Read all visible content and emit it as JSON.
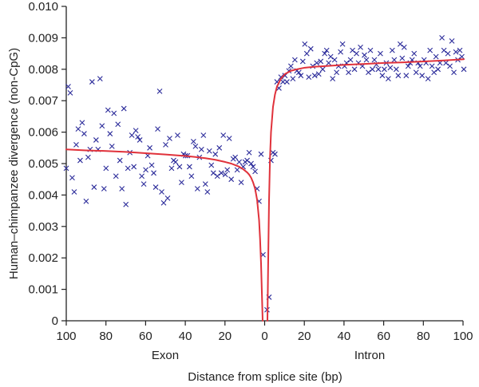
{
  "chart_data": {
    "type": "scatter",
    "title": "",
    "xlabel": "Distance from splice site (bp)",
    "ylabel": "Human–chimpanzee divergence (non-CpG)",
    "region_labels": {
      "exon": "Exon",
      "intron": "Intron"
    },
    "x_tick_labels": [
      "100",
      "80",
      "60",
      "40",
      "20",
      "0",
      "20",
      "40",
      "60",
      "80",
      "100"
    ],
    "y_tick_labels": [
      "0",
      "0.001",
      "0.002",
      "0.003",
      "0.004",
      "0.005",
      "0.006",
      "0.007",
      "0.008",
      "0.009",
      "0.010"
    ],
    "ylim": [
      0,
      0.01
    ],
    "grid": false,
    "colors": {
      "points": "#2b2b9a",
      "fit": "#e0323b",
      "axis": "#222222"
    },
    "series": [
      {
        "region": "exon",
        "marker": "x",
        "x": [
          100,
          99,
          98,
          97,
          96,
          95,
          94,
          93,
          92,
          91,
          90,
          89,
          88,
          87,
          86,
          85,
          84,
          83,
          82,
          81,
          80,
          79,
          78,
          77,
          76,
          75,
          74,
          73,
          72,
          71,
          70,
          69,
          68,
          67,
          66,
          65,
          64,
          63,
          62,
          61,
          60,
          59,
          58,
          57,
          56,
          55,
          54,
          53,
          52,
          51,
          50,
          49,
          48,
          47,
          46,
          45,
          44,
          43,
          42,
          41,
          40,
          39,
          38,
          37,
          36,
          35,
          34,
          33,
          32,
          31,
          30,
          29,
          28,
          27,
          26,
          25,
          24,
          23,
          22,
          21,
          20,
          19,
          18,
          17,
          16,
          15,
          14,
          13,
          12,
          11,
          10,
          9,
          8,
          7,
          6,
          5,
          4,
          3,
          2,
          1
        ],
        "y": [
          0.00485,
          0.00745,
          0.00725,
          0.00455,
          0.0041,
          0.0056,
          0.0061,
          0.0051,
          0.0063,
          0.00595,
          0.0038,
          0.0052,
          0.00545,
          0.0076,
          0.00425,
          0.00575,
          0.00545,
          0.0077,
          0.0062,
          0.0042,
          0.00485,
          0.0067,
          0.00595,
          0.00555,
          0.0066,
          0.0046,
          0.00625,
          0.0051,
          0.0042,
          0.00675,
          0.0037,
          0.00485,
          0.00535,
          0.0059,
          0.0049,
          0.00605,
          0.00585,
          0.00575,
          0.0046,
          0.00435,
          0.0048,
          0.00525,
          0.0055,
          0.00495,
          0.0047,
          0.00425,
          0.0061,
          0.0073,
          0.0041,
          0.00375,
          0.0056,
          0.0039,
          0.0058,
          0.00485,
          0.0051,
          0.00505,
          0.0059,
          0.0049,
          0.0044,
          0.0053,
          0.00525,
          0.00525,
          0.0049,
          0.0046,
          0.0057,
          0.00555,
          0.0042,
          0.0052,
          0.00545,
          0.0059,
          0.00435,
          0.0041,
          0.0054,
          0.00495,
          0.0047,
          0.0053,
          0.0046,
          0.0055,
          0.0047,
          0.0059,
          0.00465,
          0.0048,
          0.0058,
          0.0045,
          0.00515,
          0.0052,
          0.0048,
          0.00505,
          0.0044,
          0.0049,
          0.00505,
          0.0051,
          0.00535,
          0.005,
          0.0049,
          0.00475,
          0.0042,
          0.0038,
          0.0053,
          0.0021
        ]
      },
      {
        "region": "intron",
        "marker": "x",
        "x": [
          1,
          2,
          3,
          4,
          5,
          6,
          7,
          8,
          9,
          10,
          11,
          12,
          13,
          14,
          15,
          16,
          17,
          18,
          19,
          20,
          21,
          22,
          23,
          24,
          25,
          26,
          27,
          28,
          29,
          30,
          31,
          32,
          33,
          34,
          35,
          36,
          37,
          38,
          39,
          40,
          41,
          42,
          43,
          44,
          45,
          46,
          47,
          48,
          49,
          50,
          51,
          52,
          53,
          54,
          55,
          56,
          57,
          58,
          59,
          60,
          61,
          62,
          63,
          64,
          65,
          66,
          67,
          68,
          69,
          70,
          71,
          72,
          73,
          74,
          75,
          76,
          77,
          78,
          79,
          80,
          81,
          82,
          83,
          84,
          85,
          86,
          87,
          88,
          89,
          90,
          91,
          92,
          93,
          94,
          95,
          96,
          97,
          98,
          99,
          100
        ],
        "y": [
          0.00035,
          0.00075,
          0.0051,
          0.00535,
          0.0053,
          0.0076,
          0.0074,
          0.00775,
          0.0076,
          0.0078,
          0.0076,
          0.00795,
          0.0081,
          0.0077,
          0.0083,
          0.00795,
          0.0079,
          0.0078,
          0.00825,
          0.0088,
          0.0085,
          0.00775,
          0.00865,
          0.0081,
          0.0078,
          0.0082,
          0.00785,
          0.00825,
          0.008,
          0.0085,
          0.0086,
          0.0082,
          0.0084,
          0.0077,
          0.0083,
          0.0079,
          0.0081,
          0.00855,
          0.0088,
          0.0081,
          0.0082,
          0.0079,
          0.0083,
          0.0086,
          0.008,
          0.0085,
          0.0082,
          0.0087,
          0.0081,
          0.00845,
          0.0083,
          0.0079,
          0.0086,
          0.008,
          0.0083,
          0.00815,
          0.008,
          0.0085,
          0.0078,
          0.008,
          0.0082,
          0.0077,
          0.00805,
          0.0086,
          0.0083,
          0.008,
          0.0078,
          0.0088,
          0.00835,
          0.0087,
          0.0078,
          0.0081,
          0.0082,
          0.0083,
          0.0085,
          0.0079,
          0.0082,
          0.0081,
          0.0078,
          0.0083,
          0.0082,
          0.0077,
          0.0086,
          0.0081,
          0.0079,
          0.0084,
          0.008,
          0.0082,
          0.009,
          0.0086,
          0.0082,
          0.0085,
          0.0081,
          0.0089,
          0.0079,
          0.00855,
          0.0083,
          0.0086,
          0.0084,
          0.008
        ]
      }
    ],
    "fit": [
      {
        "region": "exon",
        "x": [
          100,
          90,
          80,
          70,
          60,
          50,
          40,
          35,
          30,
          25,
          20,
          17,
          15,
          13,
          11,
          9,
          8,
          7,
          6,
          5,
          4,
          3,
          2.5,
          2,
          1.6,
          1.2
        ],
        "y": [
          0.00545,
          0.00542,
          0.0054,
          0.00537,
          0.00533,
          0.00529,
          0.00524,
          0.00521,
          0.00517,
          0.00512,
          0.00505,
          0.005,
          0.00495,
          0.0049,
          0.00482,
          0.00472,
          0.00465,
          0.00455,
          0.0044,
          0.0042,
          0.00385,
          0.0032,
          0.0026,
          0.0018,
          0.0009,
          0.0
        ]
      },
      {
        "region": "intron",
        "x": [
          1.2,
          1.5,
          2,
          2.5,
          3,
          4,
          5,
          6,
          8,
          10,
          13,
          16,
          20,
          25,
          30,
          40,
          50,
          60,
          70,
          80,
          90,
          100
        ],
        "y": [
          0.0,
          0.0015,
          0.0038,
          0.0052,
          0.006,
          0.0068,
          0.0072,
          0.00745,
          0.0077,
          0.00785,
          0.00795,
          0.008,
          0.00805,
          0.00808,
          0.0081,
          0.00814,
          0.00817,
          0.0082,
          0.00822,
          0.00825,
          0.00828,
          0.00832
        ]
      }
    ]
  }
}
